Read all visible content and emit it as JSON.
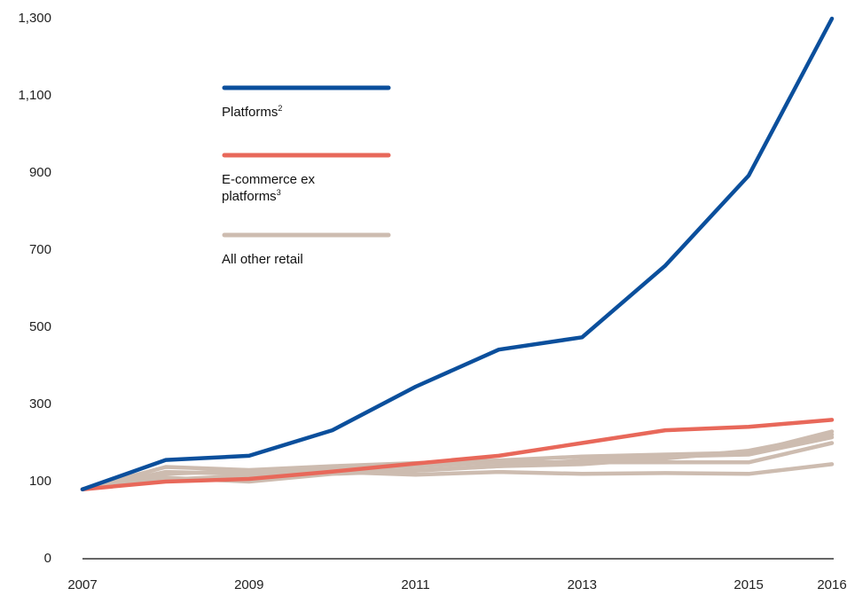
{
  "chart_data": {
    "type": "line",
    "x": [
      2007,
      2008,
      2009,
      2010,
      2011,
      2012,
      2013,
      2014,
      2015,
      2016
    ],
    "xlim": [
      2007,
      2016
    ],
    "xticks": [
      2007,
      2009,
      2011,
      2013,
      2015,
      2016
    ],
    "ylim": [
      0,
      1300
    ],
    "yticks": [
      0,
      100,
      300,
      500,
      700,
      900,
      {
        "value": 1100,
        "label": "1,100"
      },
      {
        "value": 1300,
        "label": "1,300"
      }
    ],
    "series": [
      {
        "name": "Platforms",
        "note_ref": "2",
        "color": "#0b4f9c",
        "lines": [
          [
            90,
            156,
            167,
            233,
            346,
            442,
            474,
            660,
            893,
            1300
          ]
        ]
      },
      {
        "name": "E-commerce ex platforms",
        "note_ref": "3",
        "color": "#e8685a",
        "lines": [
          [
            90,
            100,
            107,
            126,
            147,
            167,
            200,
            233,
            242,
            260
          ]
        ]
      },
      {
        "name": "All other retail",
        "color": "#cdbcb0",
        "lines": [
          [
            90,
            138,
            130,
            140,
            148,
            155,
            165,
            170,
            175,
            230
          ],
          [
            90,
            120,
            128,
            135,
            140,
            150,
            150,
            150,
            150,
            200
          ],
          [
            90,
            110,
            100,
            120,
            128,
            140,
            155,
            165,
            170,
            215
          ],
          [
            90,
            105,
            115,
            125,
            118,
            125,
            120,
            122,
            120,
            145
          ],
          [
            90,
            125,
            120,
            125,
            130,
            140,
            145,
            160,
            180,
            222
          ]
        ]
      }
    ]
  }
}
